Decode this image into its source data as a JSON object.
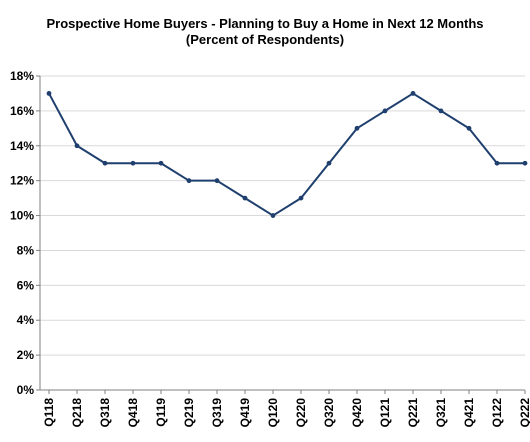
{
  "chart_data": {
    "type": "line",
    "title": "Prospective Home Buyers  - Planning to Buy a Home in Next 12 Months",
    "subtitle": "(Percent of Respondents)",
    "xlabel": "",
    "ylabel": "",
    "categories": [
      "Q118",
      "Q218",
      "Q318",
      "Q418",
      "Q119",
      "Q219",
      "Q319",
      "Q419",
      "Q120",
      "Q220",
      "Q320",
      "Q420",
      "Q121",
      "Q221",
      "Q321",
      "Q421",
      "Q122",
      "Q222"
    ],
    "series": [
      {
        "values": [
          17,
          14,
          13,
          13,
          13,
          12,
          12,
          11,
          10,
          11,
          13,
          15,
          16,
          17,
          16,
          15,
          13,
          13
        ]
      }
    ],
    "ylim": [
      0,
      18
    ],
    "yticks": [
      0,
      2,
      4,
      6,
      8,
      10,
      12,
      14,
      16,
      18
    ],
    "ytick_format": "%",
    "grid": true,
    "legend": "none",
    "colors": {
      "line": "#1f3f6e",
      "grid": "#d9d9d9",
      "axis": "#808080"
    }
  }
}
